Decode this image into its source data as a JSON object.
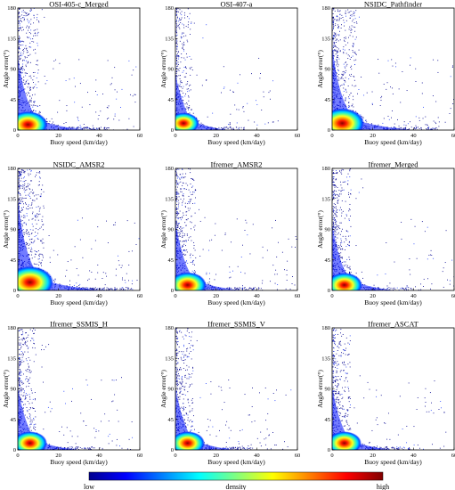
{
  "chart_data": {
    "type": "heatmap",
    "panels": [
      {
        "title": "OSI-405-c_Merged",
        "xlabel": "Buoy speed (km/day)",
        "ylabel": "Angle error(°)",
        "xlim": [
          0,
          60
        ],
        "ylim": [
          0,
          180
        ],
        "xticks": [
          0,
          20,
          40,
          60
        ],
        "yticks": [
          0,
          45,
          90,
          135,
          180
        ],
        "hotspot": {
          "x": 5,
          "y": 8
        },
        "spread": 1.0
      },
      {
        "title": "OSI-407-a",
        "xlabel": "Buoy speed (km/day)",
        "ylabel": "Angle error(°)",
        "xlim": [
          0,
          60
        ],
        "ylim": [
          0,
          180
        ],
        "xticks": [
          0,
          20,
          40,
          60
        ],
        "yticks": [
          0,
          45,
          90,
          135,
          180
        ],
        "hotspot": {
          "x": 4,
          "y": 10
        },
        "spread": 0.75
      },
      {
        "title": "NSIDC_Pathfinder",
        "xlabel": "Buoy speed (km/day)",
        "ylabel": "Angle error(°)",
        "xlim": [
          0,
          60
        ],
        "ylim": [
          0,
          180
        ],
        "xticks": [
          0,
          20,
          40,
          60
        ],
        "yticks": [
          0,
          45,
          90,
          135,
          180
        ],
        "hotspot": {
          "x": 5,
          "y": 10
        },
        "spread": 1.15
      },
      {
        "title": "NSIDC_AMSR2",
        "xlabel": "Buoy speed (km/day)",
        "ylabel": "Angle error(°)",
        "xlim": [
          0,
          60
        ],
        "ylim": [
          0,
          180
        ],
        "xticks": [
          0,
          20,
          40,
          60
        ],
        "yticks": [
          0,
          45,
          90,
          135,
          180
        ],
        "hotspot": {
          "x": 6,
          "y": 12
        },
        "spread": 1.25
      },
      {
        "title": "Ifremer_AMSR2",
        "xlabel": "Buoy speed (km/day)",
        "ylabel": "Angle error(°)",
        "xlim": [
          0,
          60
        ],
        "ylim": [
          0,
          180
        ],
        "xticks": [
          0,
          20,
          40,
          60
        ],
        "yticks": [
          0,
          45,
          90,
          135,
          180
        ],
        "hotspot": {
          "x": 6,
          "y": 8
        },
        "spread": 0.95
      },
      {
        "title": "Ifremer_Merged",
        "xlabel": "Buoy speed (km/day)",
        "ylabel": "Angle error(°)",
        "xlim": [
          0,
          60
        ],
        "ylim": [
          0,
          180
        ],
        "xticks": [
          0,
          20,
          40,
          60
        ],
        "yticks": [
          0,
          45,
          90,
          135,
          180
        ],
        "hotspot": {
          "x": 6,
          "y": 8
        },
        "spread": 0.9
      },
      {
        "title": "Ifremer_SSMIS_H",
        "xlabel": "Buoy speed (km/day)",
        "ylabel": "Angle error(°)",
        "xlim": [
          0,
          60
        ],
        "ylim": [
          0,
          180
        ],
        "xticks": [
          0,
          20,
          40,
          60
        ],
        "yticks": [
          0,
          45,
          90,
          135,
          180
        ],
        "hotspot": {
          "x": 6,
          "y": 10
        },
        "spread": 0.85
      },
      {
        "title": "Ifremer_SSMIS_V",
        "xlabel": "Buoy speed (km/day)",
        "ylabel": "Angle error(°)",
        "xlim": [
          0,
          60
        ],
        "ylim": [
          0,
          180
        ],
        "xticks": [
          0,
          20,
          40,
          60
        ],
        "yticks": [
          0,
          45,
          90,
          135,
          180
        ],
        "hotspot": {
          "x": 6,
          "y": 10
        },
        "spread": 0.85
      },
      {
        "title": "Ifremer_ASCAT",
        "xlabel": "Buoy speed (km/day)",
        "ylabel": "Angle error(°)",
        "xlim": [
          0,
          60
        ],
        "ylim": [
          0,
          180
        ],
        "xticks": [
          0,
          20,
          40,
          60
        ],
        "yticks": [
          0,
          45,
          90,
          135,
          180
        ],
        "hotspot": {
          "x": 6,
          "y": 10
        },
        "spread": 0.85
      }
    ],
    "colorbar": {
      "label": "density",
      "low_label": "low",
      "high_label": "high",
      "colors": [
        "#00008f",
        "#0000ff",
        "#0080ff",
        "#00ffff",
        "#80ff80",
        "#ffff00",
        "#ff8000",
        "#ff0000",
        "#800000"
      ]
    },
    "grid": false,
    "legend": "none"
  }
}
